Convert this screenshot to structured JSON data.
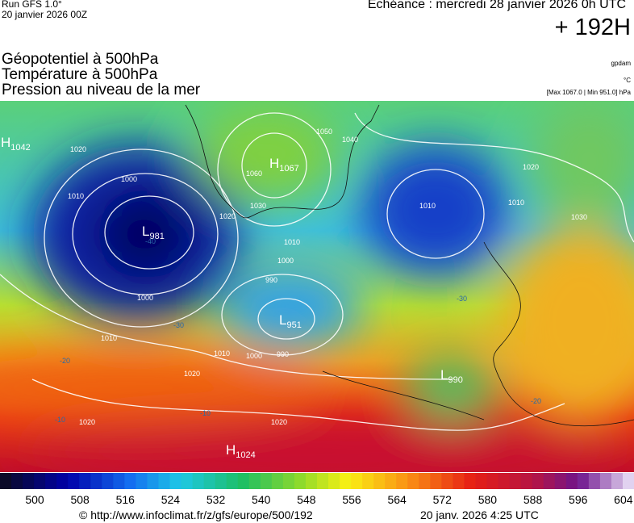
{
  "header": {
    "run": "Run GFS 1.0°",
    "date": "20 janvier 2026 00Z",
    "echeance": "Echéance : mercredi 28 janvier 2026 0h UTC",
    "lead": "+ 192H",
    "fields": [
      "Géopotentiel à 500hPa",
      "Température à 500hPa",
      "Pression au niveau de la mer"
    ],
    "units": [
      "gpdam",
      "°C",
      "[Max 1067.0 | Min 951.0] hPa"
    ]
  },
  "map": {
    "centers": [
      {
        "type": "H",
        "value": "1042"
      },
      {
        "type": "H",
        "value": "1067"
      },
      {
        "type": "L",
        "value": "981"
      },
      {
        "type": "L",
        "value": "951"
      },
      {
        "type": "L",
        "value": "990"
      },
      {
        "type": "H",
        "value": "1024"
      }
    ],
    "isobar_labels": [
      "1020",
      "1000",
      "1010",
      "1050",
      "1060",
      "1030",
      "1020",
      "1010",
      "1000",
      "990",
      "990",
      "1000",
      "1010",
      "1010",
      "1020",
      "1020",
      "1020",
      "1000",
      "1040",
      "1020",
      "1010",
      "1030",
      "1010"
    ],
    "temp_labels": [
      "-40",
      "-30",
      "-20",
      "-10",
      "-10",
      "-20",
      "-30"
    ]
  },
  "colorbar": {
    "labels": [
      500,
      508,
      516,
      524,
      532,
      540,
      548,
      556,
      564,
      572,
      580,
      588,
      596,
      604
    ]
  },
  "footer": {
    "url": "© http://www.infoclimat.fr/z/gfs/europe/500/192",
    "timestamp": "20 janv. 2026  4:25 UTC"
  }
}
